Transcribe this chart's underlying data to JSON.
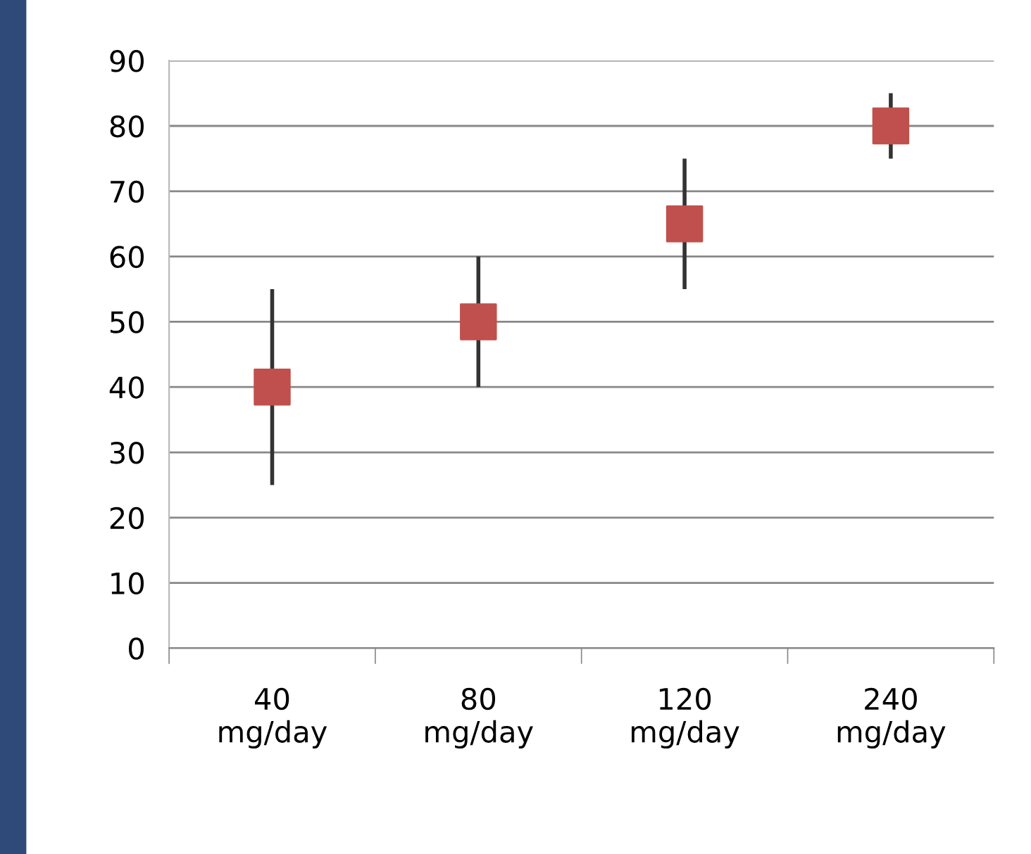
{
  "chart_data": {
    "type": "scatter",
    "categories": [
      "40\nmg/day",
      "80\nmg/day",
      "120\nmg/day",
      "240\nmg/day"
    ],
    "series": [
      {
        "color": "#c0504d",
        "values": [
          40,
          50,
          65,
          80
        ],
        "errors": [
          [
            25,
            55
          ],
          [
            40,
            60
          ],
          [
            55,
            75
          ],
          [
            75,
            85
          ]
        ]
      }
    ],
    "ylim": [
      0,
      90
    ],
    "yticks": [
      0,
      10,
      20,
      30,
      40,
      50,
      60,
      70,
      80,
      90
    ],
    "grid": "y",
    "marker": "square"
  }
}
